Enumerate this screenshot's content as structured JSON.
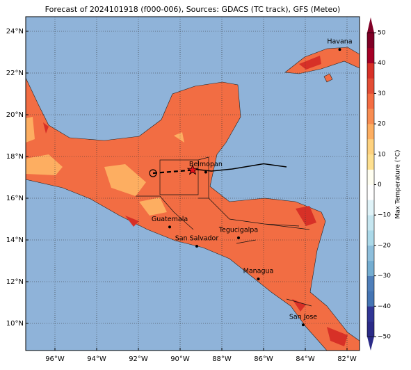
{
  "chart_data": {
    "type": "map",
    "title": "Forecast of 2024101918 (f000-006), Sources: GDACS (TC track), GFS (Meteo)",
    "lonlim": [
      -97.4,
      -81.4
    ],
    "latlim": [
      8.7,
      24.7
    ],
    "xticks": [
      {
        "value": -96,
        "label": "96°W"
      },
      {
        "value": -94,
        "label": "94°W"
      },
      {
        "value": -92,
        "label": "92°W"
      },
      {
        "value": -90,
        "label": "90°W"
      },
      {
        "value": -88,
        "label": "88°W"
      },
      {
        "value": -86,
        "label": "86°W"
      },
      {
        "value": -84,
        "label": "84°W"
      },
      {
        "value": -82,
        "label": "82°W"
      }
    ],
    "yticks": [
      {
        "value": 10,
        "label": "10°N"
      },
      {
        "value": 12,
        "label": "12°N"
      },
      {
        "value": 14,
        "label": "14°N"
      },
      {
        "value": 16,
        "label": "16°N"
      },
      {
        "value": 18,
        "label": "18°N"
      },
      {
        "value": 20,
        "label": "20°N"
      },
      {
        "value": 22,
        "label": "22°N"
      },
      {
        "value": 24,
        "label": "24°N"
      }
    ],
    "grid": true,
    "cities": [
      {
        "name": "Havana",
        "lon": -82.35,
        "lat": 23.13
      },
      {
        "name": "Belmopan",
        "lon": -88.77,
        "lat": 17.25
      },
      {
        "name": "Guatemala",
        "lon": -90.5,
        "lat": 14.62
      },
      {
        "name": "San Salvador",
        "lon": -89.2,
        "lat": 13.7
      },
      {
        "name": "Tegucigalpa",
        "lon": -87.2,
        "lat": 14.1
      },
      {
        "name": "Managua",
        "lon": -86.25,
        "lat": 12.13
      },
      {
        "name": "San Jose",
        "lon": -84.1,
        "lat": 9.93
      }
    ],
    "forecast_track": {
      "lon": [
        -91.3,
        -89.4
      ],
      "lat": [
        17.2,
        17.35
      ]
    },
    "observed_track": {
      "lon": [
        -89.4,
        -88.5,
        -87.5,
        -86,
        -84.9
      ],
      "lat": [
        17.4,
        17.3,
        17.4,
        17.65,
        17.5
      ]
    },
    "colorbar": {
      "label": "Max Temperature (°C)",
      "clim": [
        -50,
        50
      ],
      "ticks": [
        {
          "value": -50,
          "label": "−50"
        },
        {
          "value": -40,
          "label": "−40"
        },
        {
          "value": -30,
          "label": "−30"
        },
        {
          "value": -20,
          "label": "−20"
        },
        {
          "value": -10,
          "label": "−10"
        },
        0,
        10,
        20,
        30,
        40,
        50
      ],
      "colors": [
        "#2b2b88",
        "#313695",
        "#4575b4",
        "#4f7fba",
        "#74add1",
        "#8ebfdc",
        "#abd9e9",
        "#c6e6f0",
        "#e0f3f8",
        "#ffffff",
        "#fffef0",
        "#fee090",
        "#fed27f",
        "#fdae61",
        "#f88d52",
        "#f46d43",
        "#e34d35",
        "#d73027",
        "#a50026",
        "#800026"
      ]
    }
  }
}
